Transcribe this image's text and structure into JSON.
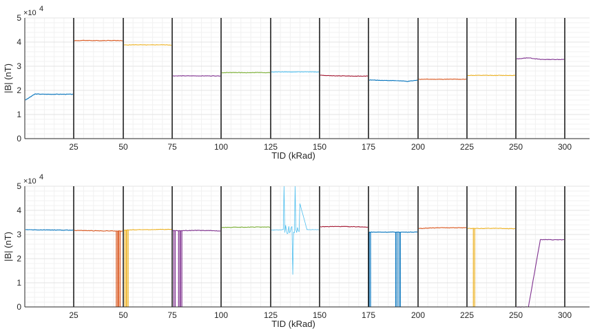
{
  "figure": {
    "background": "#ffffff",
    "grid_major_color": "#e3e3e3",
    "grid_minor_color": "#f1f1f1",
    "separator_color": "#000000"
  },
  "chart_data": [
    {
      "type": "line",
      "xlabel": "TID (kRad)",
      "ylabel": "|B| (nT)",
      "y_exponent": "4",
      "y_exponent_label": "×10",
      "ylim": [
        0,
        5
      ],
      "y_ticks": [
        "0",
        "1",
        "2",
        "3",
        "4",
        "5"
      ],
      "x_ticks": [
        "25",
        "50",
        "75",
        "100",
        "125",
        "150",
        "175",
        "200",
        "225",
        "250",
        "300"
      ],
      "grid": true,
      "minor_grid": true,
      "separators": [
        25,
        50,
        75,
        100,
        125,
        150,
        175,
        200,
        225,
        250,
        300
      ],
      "series": [
        {
          "segment": 0,
          "color": "#0072BD",
          "values": [
            1.6,
            1.85,
            1.84,
            1.84,
            1.84,
            1.84
          ]
        },
        {
          "segment": 1,
          "color": "#D95319",
          "values": [
            4.06,
            4.07,
            4.06,
            4.07,
            4.06
          ]
        },
        {
          "segment": 2,
          "color": "#EDB120",
          "values": [
            3.88,
            3.89,
            3.88,
            3.89,
            3.88
          ]
        },
        {
          "segment": 3,
          "color": "#7E2F8E",
          "values": [
            2.6,
            2.6,
            2.6,
            2.6,
            2.6
          ]
        },
        {
          "segment": 4,
          "color": "#77AC30",
          "values": [
            2.73,
            2.74,
            2.73,
            2.74,
            2.73
          ]
        },
        {
          "segment": 5,
          "color": "#4DBEEE",
          "values": [
            2.76,
            2.77,
            2.76,
            2.77,
            2.76
          ]
        },
        {
          "segment": 6,
          "color": "#A2142F",
          "values": [
            2.63,
            2.6,
            2.6,
            2.59,
            2.59
          ]
        },
        {
          "segment": 7,
          "color": "#0072BD",
          "values": [
            2.43,
            2.42,
            2.41,
            2.4,
            2.37,
            2.42
          ]
        },
        {
          "segment": 8,
          "color": "#D95319",
          "values": [
            2.46,
            2.46,
            2.46,
            2.46,
            2.46
          ]
        },
        {
          "segment": 9,
          "color": "#EDB120",
          "values": [
            2.62,
            2.62,
            2.62,
            2.62,
            2.62
          ]
        },
        {
          "segment": 10,
          "color": "#7E2F8E",
          "values": [
            3.3,
            3.35,
            3.28,
            3.28,
            3.28
          ]
        }
      ]
    },
    {
      "type": "line",
      "xlabel": "TID (kRad)",
      "ylabel": "|B| (nT)",
      "y_exponent": "4",
      "y_exponent_label": "×10",
      "ylim": [
        0,
        5
      ],
      "y_ticks": [
        "0",
        "1",
        "2",
        "3",
        "4",
        "5"
      ],
      "x_ticks": [
        "25",
        "50",
        "75",
        "100",
        "125",
        "150",
        "175",
        "200",
        "225",
        "250",
        "300"
      ],
      "grid": true,
      "minor_grid": true,
      "separators": [
        25,
        50,
        75,
        100,
        125,
        150,
        175,
        200,
        225,
        250,
        300
      ],
      "series": [
        {
          "segment": 0,
          "color": "#0072BD",
          "values": [
            3.2,
            3.19,
            3.19,
            3.18,
            3.18
          ]
        },
        {
          "segment": 1,
          "color": "#D95319",
          "values": [
            3.17,
            3.16,
            3.15,
            3.15,
            3.14
          ],
          "dropouts": [
            0.87,
            0.92
          ]
        },
        {
          "segment": 2,
          "color": "#EDB120",
          "values": [
            3.18,
            3.2,
            3.2,
            3.21,
            3.21
          ],
          "dropouts": [
            0.02,
            0.06
          ]
        },
        {
          "segment": 3,
          "color": "#7E2F8E",
          "values": [
            3.16,
            3.16,
            3.17,
            3.16,
            3.15
          ],
          "dropouts": [
            0.02,
            0.12,
            0.16
          ]
        },
        {
          "segment": 4,
          "color": "#77AC30",
          "values": [
            3.29,
            3.3,
            3.3,
            3.31,
            3.31
          ]
        },
        {
          "segment": 5,
          "color": "#4DBEEE",
          "values": [
            3.18,
            3.2,
            5.0,
            3.2,
            3.2
          ],
          "noisy": true
        },
        {
          "segment": 6,
          "color": "#A2142F",
          "values": [
            3.32,
            3.33,
            3.33,
            3.32,
            3.31
          ]
        },
        {
          "segment": 7,
          "color": "#0072BD",
          "values": [
            3.1,
            3.1,
            3.1,
            3.1,
            3.1
          ],
          "dropouts": [
            0.0,
            0.55,
            0.62
          ]
        },
        {
          "segment": 8,
          "color": "#D95319",
          "values": [
            3.25,
            3.27,
            3.28,
            3.28,
            3.28
          ]
        },
        {
          "segment": 9,
          "color": "#EDB120",
          "values": [
            3.25,
            3.25,
            3.26,
            3.25,
            3.24
          ],
          "dropouts": [
            0.12
          ]
        },
        {
          "segment": 10,
          "color": "#7E2F8E",
          "values": [
            0.0,
            0.0,
            2.79,
            2.78,
            2.78
          ]
        }
      ]
    }
  ]
}
